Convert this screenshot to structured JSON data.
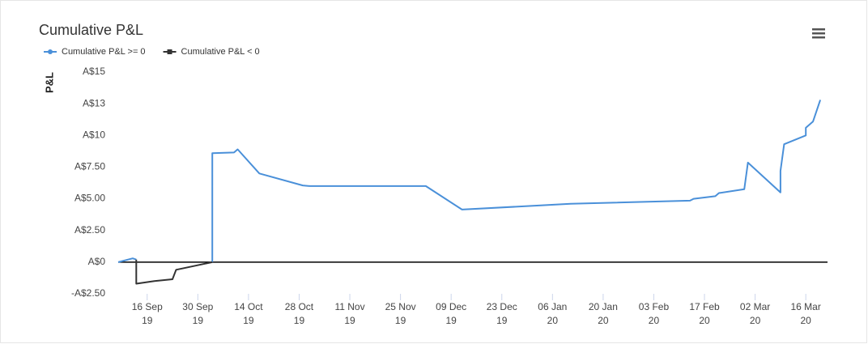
{
  "chart_data": {
    "type": "line",
    "title": "Cumulative P&L",
    "y_label": "P&L",
    "series": [
      {
        "name": "Cumulative P&L >= 0",
        "color": "#4a90d9",
        "x": [
          "2019-09-08",
          "2019-09-12",
          "2019-09-13",
          "2019-09-20",
          "2019-10-04",
          "2019-10-04",
          "2019-10-10",
          "2019-10-11",
          "2019-10-17",
          "2019-10-29",
          "2019-10-31",
          "2019-12-02",
          "2019-12-12",
          "2020-01-11",
          "2020-02-13",
          "2020-02-14",
          "2020-02-20",
          "2020-02-21",
          "2020-02-28",
          "2020-02-29",
          "2020-03-09",
          "2020-03-09",
          "2020-03-10",
          "2020-03-16",
          "2020-03-16",
          "2020-03-18",
          "2020-03-20"
        ],
        "values": [
          0,
          0.3,
          0.2,
          null,
          0,
          8.6,
          8.65,
          8.9,
          7.0,
          6.05,
          6.0,
          6.0,
          4.15,
          4.6,
          4.85,
          5.0,
          5.2,
          5.45,
          5.75,
          7.85,
          5.5,
          7.2,
          9.3,
          10.0,
          10.6,
          11.1,
          12.8
        ]
      },
      {
        "name": "Cumulative P&L < 0",
        "color": "#333333",
        "x": [
          "2019-09-13",
          "2019-09-13",
          "2019-09-18",
          "2019-09-23",
          "2019-09-24",
          "2019-10-04"
        ],
        "values": [
          0.2,
          -1.7,
          -1.5,
          -1.35,
          -0.6,
          0
        ]
      }
    ],
    "xlim": [
      "2019-09-08",
      "2020-03-22"
    ],
    "xticks": [
      {
        "value": "2019-09-16",
        "label": "16 Sep 19"
      },
      {
        "value": "2019-09-30",
        "label": "30 Sep 19"
      },
      {
        "value": "2019-10-14",
        "label": "14 Oct 19"
      },
      {
        "value": "2019-10-28",
        "label": "28 Oct 19"
      },
      {
        "value": "2019-11-11",
        "label": "11 Nov 19"
      },
      {
        "value": "2019-11-25",
        "label": "25 Nov 19"
      },
      {
        "value": "2019-12-09",
        "label": "09 Dec 19"
      },
      {
        "value": "2019-12-23",
        "label": "23 Dec 19"
      },
      {
        "value": "2020-01-06",
        "label": "06 Jan 20"
      },
      {
        "value": "2020-01-20",
        "label": "20 Jan 20"
      },
      {
        "value": "2020-02-03",
        "label": "03 Feb 20"
      },
      {
        "value": "2020-02-17",
        "label": "17 Feb 20"
      },
      {
        "value": "2020-03-02",
        "label": "02 Mar 20"
      },
      {
        "value": "2020-03-16",
        "label": "16 Mar 20"
      }
    ],
    "ylim": [
      -2.5,
      15
    ],
    "yticks": [
      {
        "value": 15,
        "label": "A$15"
      },
      {
        "value": 12.5,
        "label": "A$13"
      },
      {
        "value": 10,
        "label": "A$10"
      },
      {
        "value": 7.5,
        "label": "A$7.50"
      },
      {
        "value": 5,
        "label": "A$5.00"
      },
      {
        "value": 2.5,
        "label": "A$2.50"
      },
      {
        "value": 0,
        "label": "A$0"
      },
      {
        "value": -2.5,
        "label": "-A$2.50"
      }
    ]
  }
}
